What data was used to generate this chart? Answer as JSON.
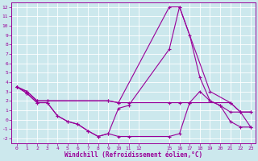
{
  "bg_color": "#cce8ed",
  "line_color": "#990099",
  "grid_color": "#ffffff",
  "xlabel": "Windchill (Refroidissement éolien,°C)",
  "xlim": [
    -0.5,
    23.5
  ],
  "ylim": [
    -2.5,
    12.5
  ],
  "xticks": [
    0,
    1,
    2,
    3,
    4,
    5,
    6,
    7,
    8,
    9,
    10,
    11,
    12,
    15,
    16,
    17,
    18,
    19,
    20,
    21,
    22,
    23
  ],
  "yticks": [
    -2,
    -1,
    0,
    1,
    2,
    3,
    4,
    5,
    6,
    7,
    8,
    9,
    10,
    11,
    12
  ],
  "line1_x": [
    0,
    1,
    2,
    3,
    4,
    5,
    6,
    7,
    8,
    9,
    10,
    11,
    15,
    16,
    17,
    18,
    19,
    20,
    21,
    22,
    23
  ],
  "line1_y": [
    3.5,
    2.8,
    1.8,
    1.8,
    0.4,
    -0.2,
    -0.5,
    -1.2,
    -1.8,
    -1.5,
    -1.8,
    -1.8,
    -1.8,
    -1.5,
    1.8,
    3.0,
    2.0,
    1.5,
    0.8,
    0.8,
    -0.8
  ],
  "line2_x": [
    0,
    1,
    2,
    3,
    4,
    5,
    6,
    7,
    8,
    9,
    10,
    11,
    15,
    16,
    17,
    18,
    19,
    20,
    21,
    22,
    23
  ],
  "line2_y": [
    3.5,
    2.8,
    1.8,
    1.8,
    0.4,
    -0.2,
    -0.5,
    -1.2,
    -1.8,
    -1.5,
    1.2,
    1.5,
    7.5,
    12.0,
    9.0,
    4.5,
    2.0,
    1.5,
    -0.2,
    -0.8,
    -0.8
  ],
  "line3_x": [
    0,
    1,
    2,
    3,
    9,
    10,
    11,
    15,
    16,
    17,
    21,
    22,
    23
  ],
  "line3_y": [
    3.5,
    3.0,
    2.0,
    2.0,
    2.0,
    1.8,
    1.8,
    1.8,
    1.8,
    1.8,
    1.8,
    0.8,
    0.8
  ],
  "line4_x": [
    0,
    1,
    2,
    3,
    9,
    10,
    15,
    16,
    19,
    21,
    22,
    23
  ],
  "line4_y": [
    3.5,
    3.0,
    2.0,
    2.0,
    2.0,
    1.8,
    12.0,
    12.0,
    3.0,
    1.8,
    0.8,
    0.8
  ]
}
